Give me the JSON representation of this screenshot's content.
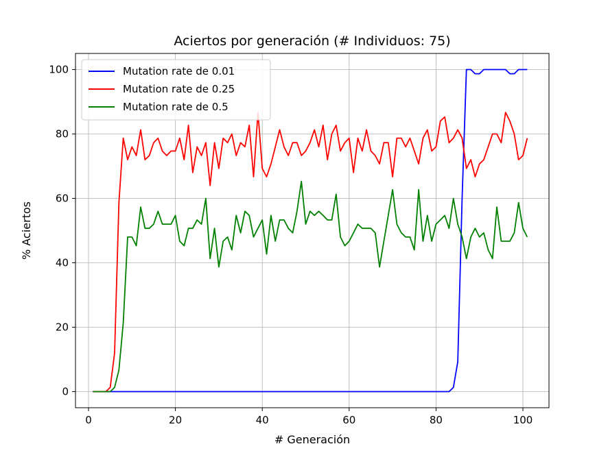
{
  "chart_data": {
    "type": "line",
    "title": "Aciertos por generación (# Individuos: 75)",
    "xlabel": "# Generación",
    "ylabel": "% Aciertos",
    "xlim": [
      -3,
      106
    ],
    "ylim": [
      -5,
      105
    ],
    "xticks": [
      0,
      20,
      40,
      60,
      80,
      100
    ],
    "yticks": [
      0,
      20,
      40,
      60,
      80,
      100
    ],
    "grid": true,
    "legend_position": "top-left",
    "series": [
      {
        "name": "Mutation rate de 0.01",
        "color": "#0000ff",
        "x": [
          1,
          82,
          83,
          84,
          85,
          86,
          87,
          88,
          89,
          90,
          91,
          92,
          93,
          94,
          95,
          96,
          97,
          98,
          99,
          100,
          101
        ],
        "y": [
          0,
          0,
          0,
          1.3,
          9.3,
          60,
          100,
          100,
          98.7,
          98.7,
          100,
          100,
          100,
          100,
          100,
          100,
          98.7,
          98.7,
          100,
          100,
          100
        ]
      },
      {
        "name": "Mutation rate de 0.25",
        "color": "#ff0000",
        "x": [
          1,
          2,
          3,
          4,
          5,
          6,
          7,
          8,
          9,
          10,
          11,
          12,
          13,
          14,
          15,
          16,
          17,
          18,
          19,
          20,
          21,
          22,
          23,
          24,
          25,
          26,
          27,
          28,
          29,
          30,
          31,
          32,
          33,
          34,
          35,
          36,
          37,
          38,
          39,
          40,
          41,
          42,
          43,
          44,
          45,
          46,
          47,
          48,
          49,
          50,
          51,
          52,
          53,
          54,
          55,
          56,
          57,
          58,
          59,
          60,
          61,
          62,
          63,
          64,
          65,
          66,
          67,
          68,
          69,
          70,
          71,
          72,
          73,
          74,
          75,
          76,
          77,
          78,
          79,
          80,
          81,
          82,
          83,
          84,
          85,
          86,
          87,
          88,
          89,
          90,
          91,
          92,
          93,
          94,
          95,
          96,
          97,
          98,
          99,
          100,
          101
        ],
        "y": [
          0,
          0,
          0,
          0,
          1.3,
          12,
          58.7,
          78.7,
          72,
          76,
          73.3,
          81.3,
          72,
          73.3,
          77.3,
          78.7,
          74.7,
          73.3,
          74.7,
          74.7,
          78.7,
          72,
          82.7,
          68,
          76,
          73.3,
          77.3,
          64,
          77.3,
          69.3,
          78.7,
          77.3,
          80,
          73.3,
          77.3,
          76,
          82.7,
          66.7,
          86.7,
          69.3,
          66.7,
          70.7,
          76,
          81.3,
          76,
          73.3,
          77.3,
          77.3,
          73.3,
          74.7,
          77.3,
          81.3,
          76,
          82.7,
          72,
          80,
          82.7,
          74.7,
          77.3,
          78.7,
          68,
          78.7,
          74.7,
          81.3,
          74.7,
          73.3,
          70.7,
          77.3,
          77.3,
          66.7,
          78.7,
          78.7,
          76,
          78.7,
          74.7,
          70.7,
          78.7,
          81.3,
          74.7,
          76,
          84,
          85.3,
          77.3,
          78.7,
          81.3,
          78.7,
          69.3,
          72,
          66.7,
          70.7,
          72,
          76,
          80,
          80,
          77.3,
          86.7,
          84,
          80,
          72,
          73.3,
          78.7
        ]
      },
      {
        "name": "Mutation rate de 0.5",
        "color": "#008000",
        "x": [
          1,
          2,
          3,
          4,
          5,
          6,
          7,
          8,
          9,
          10,
          11,
          12,
          13,
          14,
          15,
          16,
          17,
          18,
          19,
          20,
          21,
          22,
          23,
          24,
          25,
          26,
          27,
          28,
          29,
          30,
          31,
          32,
          33,
          34,
          35,
          36,
          37,
          38,
          39,
          40,
          41,
          42,
          43,
          44,
          45,
          46,
          47,
          48,
          49,
          50,
          51,
          52,
          53,
          54,
          55,
          56,
          57,
          58,
          59,
          60,
          61,
          62,
          63,
          64,
          65,
          66,
          67,
          68,
          69,
          70,
          71,
          72,
          73,
          74,
          75,
          76,
          77,
          78,
          79,
          80,
          81,
          82,
          83,
          84,
          85,
          86,
          87,
          88,
          89,
          90,
          91,
          92,
          93,
          94,
          95,
          96,
          97,
          98,
          99,
          100,
          101
        ],
        "y": [
          0,
          0,
          0,
          0,
          0,
          1.3,
          6.7,
          21.3,
          48,
          48,
          45.3,
          57.3,
          50.7,
          50.7,
          52,
          56,
          52,
          52,
          52,
          54.7,
          46.7,
          45.3,
          50.7,
          50.7,
          53.3,
          52,
          60,
          41.3,
          50.7,
          38.7,
          46.7,
          48,
          44,
          54.7,
          49.3,
          56,
          54.7,
          48,
          50.7,
          53.3,
          42.7,
          54.7,
          46.7,
          53.3,
          53.3,
          50.7,
          49.3,
          56,
          65.3,
          52,
          56,
          54.7,
          56,
          54.7,
          53.3,
          53.3,
          61.3,
          48,
          45.3,
          46.7,
          49.3,
          52,
          50.7,
          50.7,
          50.7,
          49.3,
          38.7,
          46.7,
          54.7,
          62.7,
          52,
          49.3,
          48,
          48,
          44,
          62.7,
          46.7,
          54.7,
          46.7,
          52,
          53.3,
          54.7,
          50.7,
          60,
          52,
          48,
          41.3,
          48,
          50.7,
          48,
          49.3,
          44,
          41.3,
          57.3,
          46.7,
          46.7,
          46.7,
          49.3,
          58.7,
          50.7,
          48
        ]
      }
    ]
  }
}
